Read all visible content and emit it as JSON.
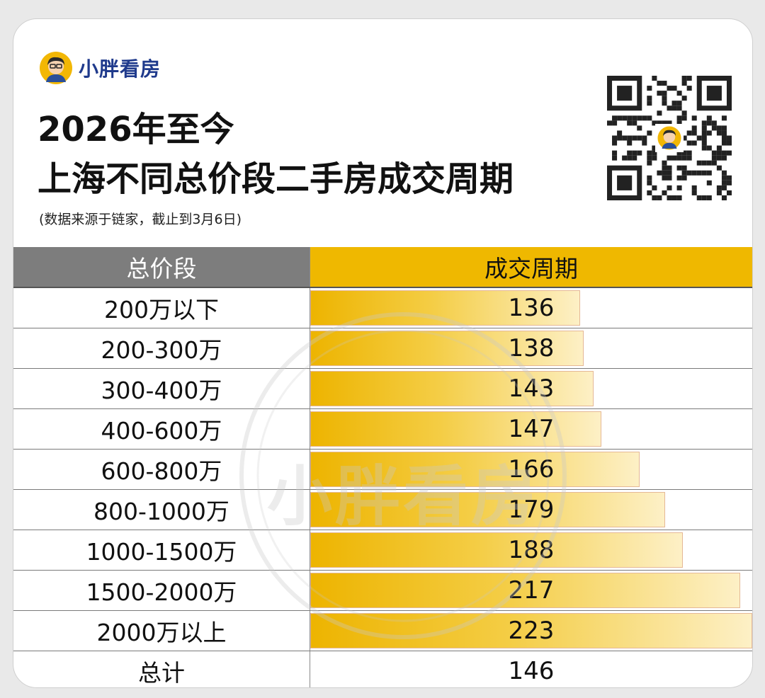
{
  "brand": {
    "name": "小胖看房"
  },
  "title_line1": "2026年至今",
  "title_line2": "上海不同总价段二手房成交周期",
  "source_note": "(数据来源于链家，截止到3月6日)",
  "watermark": "小胖看房",
  "colors": {
    "header_left": "#7d7d7d",
    "header_right": "#efb800",
    "bar_start": "#edb400",
    "bar_end": "#fdf0c6",
    "brand": "#1f3a8c"
  },
  "chart_data": {
    "type": "bar",
    "title": "2026年至今 上海不同总价段二手房成交周期",
    "column_headers": [
      "总价段",
      "成交周期"
    ],
    "categories": [
      "200万以下",
      "200-300万",
      "300-400万",
      "400-600万",
      "600-800万",
      "800-1000万",
      "1000-1500万",
      "1500-2000万",
      "2000万以上"
    ],
    "values": [
      136,
      138,
      143,
      147,
      166,
      179,
      188,
      217,
      223
    ],
    "xlim": [
      0,
      223
    ],
    "total_label": "总计",
    "total_value": 146
  }
}
